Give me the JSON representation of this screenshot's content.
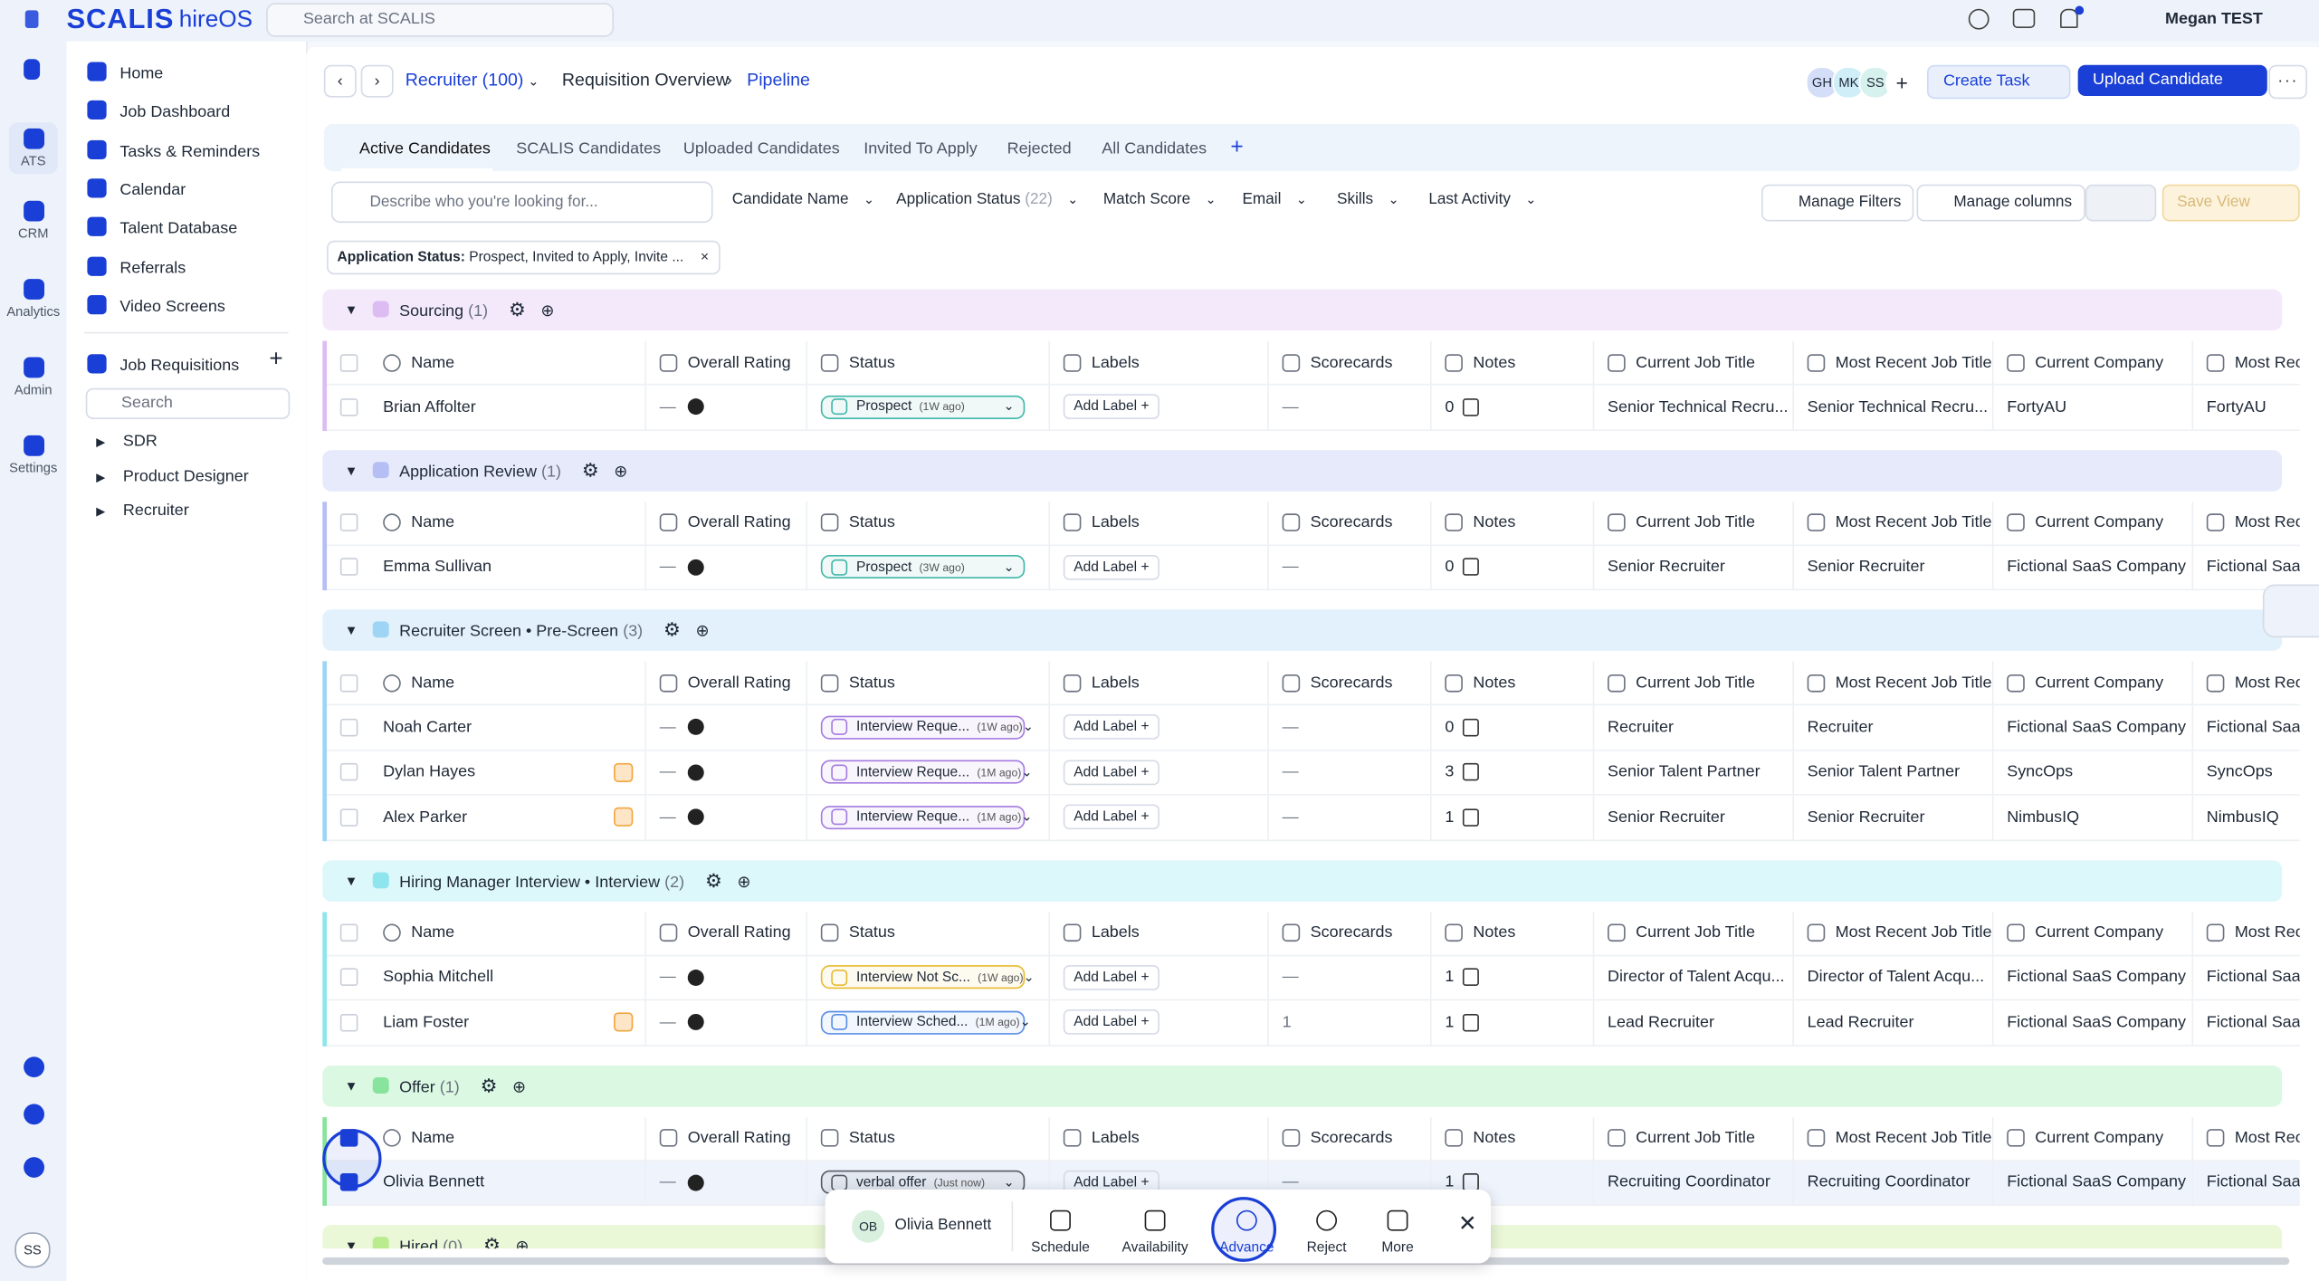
{
  "header": {
    "logo": "SCALIS",
    "product": "hireOS",
    "search_placeholder": "Search at SCALIS",
    "user": "Megan TEST"
  },
  "rail": {
    "items": [
      "ATS",
      "CRM",
      "Analytics",
      "Admin",
      "Settings"
    ],
    "avatar": "SS"
  },
  "sidebar": {
    "nav": [
      "Home",
      "Job Dashboard",
      "Tasks & Reminders",
      "Calendar",
      "Talent Database",
      "Referrals",
      "Video Screens"
    ],
    "section": "Job Requisitions",
    "search_placeholder": "Search",
    "requisitions": [
      "SDR",
      "Product Designer",
      "Recruiter"
    ]
  },
  "breadcrumb": {
    "items": [
      "Recruiter (100)",
      "Requisition Overview",
      "Pipeline"
    ],
    "avatars": [
      "GH",
      "MK",
      "SS"
    ],
    "buttons": [
      "Create Task",
      "Upload Candidate"
    ]
  },
  "tabs": [
    "Active Candidates",
    "SCALIS Candidates",
    "Uploaded Candidates",
    "Invited To Apply",
    "Rejected",
    "All Candidates"
  ],
  "filters": {
    "search_placeholder": "Describe who you're looking for...",
    "items": [
      "Candidate Name",
      "Application Status",
      "Match Score",
      "Email",
      "Skills",
      "Last Activity"
    ],
    "status_count": "(22)",
    "buttons": [
      "Manage Filters",
      "Manage columns",
      "Save View"
    ]
  },
  "chip": {
    "label": "Application Status:",
    "value": "Prospect, Invited to Apply, Invite ..."
  },
  "columns": [
    "Name",
    "Overall Rating",
    "Status",
    "Labels",
    "Scorecards",
    "Notes",
    "Current Job Title",
    "Most Recent Job Title",
    "Current Company",
    "Most Recent Company"
  ],
  "add_label": "Add Label",
  "groups": [
    {
      "name": "Sourcing",
      "count": "(1)",
      "bg": "#f3e9fb",
      "color": "#dcbcf2",
      "rows": [
        {
          "name": "Brian Affolter",
          "rating": "—",
          "status": "Prospect",
          "time": "(1W ago)",
          "status_color": "#3fb6a8",
          "scorecards": "—",
          "notes": 0,
          "title": "Senior Technical Recru...",
          "recent_title": "Senior Technical Recru...",
          "company": "FortyAU",
          "recent_company": "FortyAU"
        }
      ]
    },
    {
      "name": "Application Review",
      "count": "(1)",
      "bg": "#e7eafb",
      "color": "#b5bff4",
      "rows": [
        {
          "name": "Emma Sullivan",
          "rating": "—",
          "status": "Prospect",
          "time": "(3W ago)",
          "status_color": "#3fb6a8",
          "scorecards": "—",
          "notes": 0,
          "title": "Senior Recruiter",
          "recent_title": "Senior Recruiter",
          "company": "Fictional SaaS Company",
          "recent_company": "Fictional SaaS Company"
        }
      ]
    },
    {
      "name": "Recruiter Screen • Pre-Screen",
      "count": "(3)",
      "bg": "#e2f1fb",
      "color": "#9fd5f4",
      "rows": [
        {
          "name": "Noah Carter",
          "rating": "—",
          "status": "Interview Reque...",
          "time": "(1W ago)",
          "status_color": "#a57be0",
          "scorecards": "—",
          "notes": 0,
          "title": "Recruiter",
          "recent_title": "Recruiter",
          "company": "Fictional SaaS Company",
          "recent_company": "Fictional SaaS Company"
        },
        {
          "name": "Dylan Hayes",
          "badge": true,
          "rating": "—",
          "status": "Interview Reque...",
          "time": "(1M ago)",
          "status_color": "#a57be0",
          "scorecards": "—",
          "notes": 3,
          "title": "Senior Talent Partner",
          "recent_title": "Senior Talent Partner",
          "company": "SyncOps",
          "recent_company": "SyncOps"
        },
        {
          "name": "Alex Parker",
          "badge": true,
          "rating": "—",
          "status": "Interview Reque...",
          "time": "(1M ago)",
          "status_color": "#a57be0",
          "scorecards": "—",
          "notes": 1,
          "title": "Senior Recruiter",
          "recent_title": "Senior Recruiter",
          "company": "NimbusIQ",
          "recent_company": "NimbusIQ"
        }
      ]
    },
    {
      "name": "Hiring Manager Interview • Interview",
      "count": "(2)",
      "bg": "#ddf8fa",
      "color": "#8ee5ee",
      "rows": [
        {
          "name": "Sophia Mitchell",
          "rating": "—",
          "status": "Interview Not Sc...",
          "time": "(1W ago)",
          "status_color": "#e8b92f",
          "scorecards": "—",
          "notes": 1,
          "title": "Director of Talent Acqu...",
          "recent_title": "Director of Talent Acqu...",
          "company": "Fictional SaaS Company",
          "recent_company": "Fictional SaaS Company"
        },
        {
          "name": "Liam Foster",
          "badge": true,
          "rating": "—",
          "status": "Interview Sched...",
          "time": "(1M ago)",
          "status_color": "#5a8ee6",
          "scorecards": 1,
          "notes": 1,
          "title": "Lead Recruiter",
          "recent_title": "Lead Recruiter",
          "company": "Fictional SaaS Company",
          "recent_company": "Fictional SaaS Company"
        }
      ]
    },
    {
      "name": "Offer",
      "count": "(1)",
      "bg": "#dbf8e2",
      "color": "#88e39d",
      "rows": [
        {
          "name": "Olivia Bennett",
          "selected": true,
          "rating": "—",
          "status": "verbal offer",
          "time": "(Just now)",
          "status_color": "#555b66",
          "scorecards": "—",
          "notes": 1,
          "title": "Recruiting Coordinator",
          "recent_title": "Recruiting Coordinator",
          "company": "Fictional SaaS Company",
          "recent_company": "Fictional SaaS Company"
        }
      ]
    },
    {
      "name": "Hired",
      "count": "(0)",
      "bg": "#eaf8d7",
      "color": "#bbeb8f",
      "rows": []
    }
  ],
  "action_bar": {
    "initials": "OB",
    "name": "Olivia Bennett",
    "actions": [
      "Schedule",
      "Availability",
      "Advance",
      "Reject",
      "More"
    ]
  }
}
